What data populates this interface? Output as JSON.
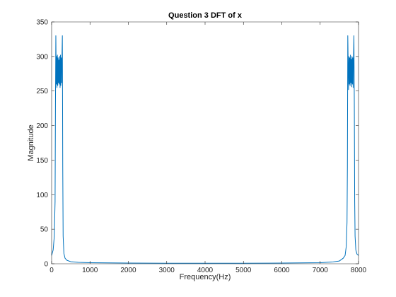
{
  "chart_data": {
    "type": "line",
    "title": "Question 3 DFT of x",
    "xlabel": "Frequency(Hz)",
    "ylabel": "Magnitude",
    "xlim": [
      0,
      8000
    ],
    "ylim": [
      0,
      350
    ],
    "xticks": [
      0,
      1000,
      2000,
      3000,
      4000,
      5000,
      6000,
      7000,
      8000
    ],
    "yticks": [
      0,
      50,
      100,
      150,
      200,
      250,
      300,
      350
    ],
    "grid": false,
    "legend": "none",
    "series_color": "#0072bd",
    "series": [
      {
        "name": "",
        "x": [
          0,
          40,
          70,
          90,
          100,
          110,
          120,
          130,
          140,
          150,
          160,
          170,
          180,
          190,
          200,
          210,
          220,
          230,
          240,
          250,
          260,
          270,
          280,
          290,
          300,
          320,
          350,
          400,
          500,
          700,
          1000,
          2000,
          3000,
          4000,
          5000,
          6000,
          7000,
          7300,
          7500,
          7600,
          7650,
          7680,
          7700,
          7710,
          7720,
          7730,
          7740,
          7750,
          7760,
          7770,
          7780,
          7790,
          7800,
          7810,
          7820,
          7830,
          7840,
          7850,
          7860,
          7870,
          7880,
          7890,
          7900,
          7910,
          7930,
          7960,
          8000
        ],
        "y": [
          12,
          20,
          40,
          90,
          230,
          330,
          260,
          300,
          255,
          302,
          258,
          298,
          262,
          295,
          260,
          300,
          255,
          302,
          258,
          298,
          262,
          300,
          330,
          140,
          40,
          15,
          8,
          5,
          3,
          2,
          1.5,
          1,
          0.8,
          0.8,
          0.8,
          1,
          1.5,
          2.5,
          4,
          8,
          12,
          25,
          60,
          140,
          330,
          290,
          252,
          300,
          260,
          298,
          258,
          302,
          262,
          296,
          256,
          300,
          260,
          298,
          255,
          300,
          330,
          235,
          90,
          40,
          20,
          14,
          12
        ]
      }
    ]
  }
}
